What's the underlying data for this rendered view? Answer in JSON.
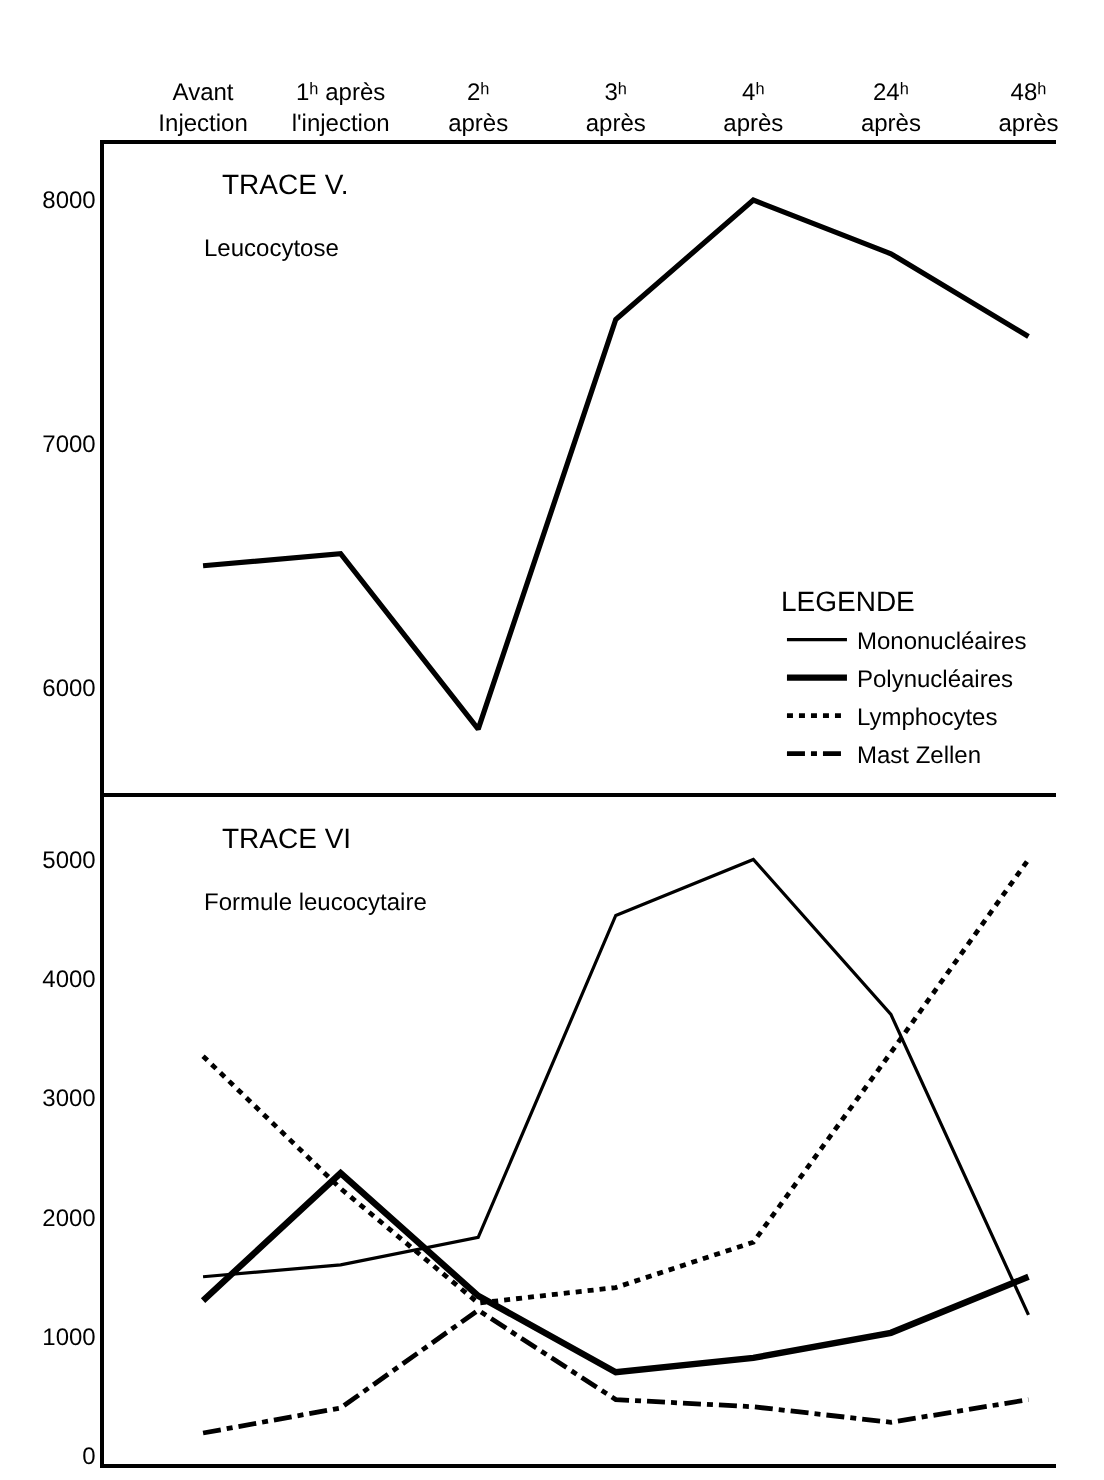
{
  "chart_data": [
    {
      "type": "line",
      "title": "TRACE V.",
      "subtitle": "Leucocytose",
      "categories": [
        "Avant\nInjection",
        "1ʰ après\nl'injection",
        "2ʰ\naprès",
        "3ʰ\naprès",
        "4ʰ\naprès",
        "24ʰ\naprès",
        "48ʰ\naprès"
      ],
      "series": [
        {
          "color": "#000000",
          "line_style": "solid",
          "values": [
            6500,
            6550,
            5830,
            7510,
            8000,
            7780,
            7440
          ]
        }
      ],
      "ylim": [
        5550,
        8230
      ],
      "yticks": [
        6000,
        7000,
        8000
      ],
      "grid": false,
      "legend": false,
      "marker": "none"
    },
    {
      "type": "line",
      "title": "TRACE VI",
      "subtitle": "Formule leucocytaire",
      "categories": [
        null,
        null,
        null,
        null,
        null,
        null,
        null
      ],
      "series": [
        {
          "name": "Mononucléaires",
          "color": "#000000",
          "line_style": "solid",
          "values": [
            1500,
            1600,
            1830,
            4530,
            5000,
            3700,
            1180
          ]
        },
        {
          "name": "Polynucléaires",
          "color": "#000000",
          "line_style": "solid",
          "values": [
            1300,
            2370,
            1340,
            700,
            820,
            1030,
            1500
          ]
        },
        {
          "name": "Lymphocytes",
          "color": "#000000",
          "line_style": "dotted",
          "values": [
            3350,
            2240,
            1280,
            1410,
            1790,
            3380,
            5000
          ]
        },
        {
          "name": "Mast Zellen",
          "color": "#000000",
          "line_style": "dashdot",
          "values": [
            190,
            400,
            1220,
            470,
            410,
            280,
            470
          ]
        }
      ],
      "ylim": [
        -70,
        5520
      ],
      "yticks": [
        0,
        1000,
        2000,
        3000,
        4000,
        5000
      ],
      "grid": false,
      "legend": "top right",
      "legend_title": "LEGENDE",
      "marker": "none",
      "tick_labels": "y"
    }
  ]
}
